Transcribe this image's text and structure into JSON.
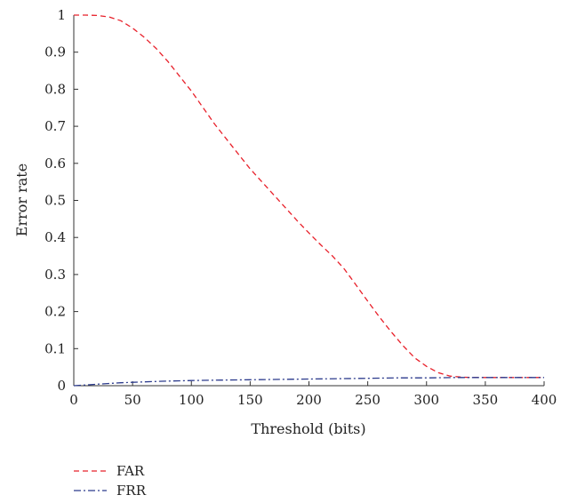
{
  "chart_data": {
    "type": "line",
    "title": "",
    "xlabel": "Threshold (bits)",
    "ylabel": "Error rate",
    "xlim": [
      0,
      400
    ],
    "ylim": [
      0,
      1
    ],
    "x_ticks": [
      0,
      50,
      100,
      150,
      200,
      250,
      300,
      350,
      400
    ],
    "y_ticks": [
      0,
      0.1,
      0.2,
      0.3,
      0.4,
      0.5,
      0.6,
      0.7,
      0.8,
      0.9,
      1
    ],
    "grid": false,
    "legend_position": "bottom-left",
    "series": [
      {
        "name": "FAR",
        "color": "#e8202a",
        "dash": "dashed",
        "x": [
          0,
          10,
          20,
          30,
          40,
          50,
          60,
          70,
          80,
          90,
          100,
          110,
          120,
          130,
          140,
          150,
          160,
          170,
          180,
          190,
          200,
          210,
          220,
          230,
          240,
          250,
          260,
          270,
          280,
          290,
          300,
          310,
          320,
          330,
          340,
          350,
          360,
          370,
          380,
          390,
          400
        ],
        "y": [
          1.0,
          1.0,
          0.999,
          0.995,
          0.985,
          0.965,
          0.94,
          0.91,
          0.875,
          0.835,
          0.795,
          0.75,
          0.705,
          0.665,
          0.625,
          0.585,
          0.55,
          0.515,
          0.48,
          0.445,
          0.412,
          0.38,
          0.35,
          0.315,
          0.272,
          0.228,
          0.185,
          0.145,
          0.108,
          0.075,
          0.052,
          0.035,
          0.026,
          0.023,
          0.022,
          0.022,
          0.022,
          0.022,
          0.022,
          0.022,
          0.022
        ]
      },
      {
        "name": "FRR",
        "color": "#2b3a8c",
        "dash": "dashdot",
        "x": [
          0,
          10,
          20,
          30,
          40,
          50,
          75,
          100,
          125,
          150,
          175,
          200,
          225,
          250,
          275,
          300,
          325,
          350,
          375,
          400
        ],
        "y": [
          0.0,
          0.002,
          0.004,
          0.006,
          0.008,
          0.009,
          0.012,
          0.014,
          0.015,
          0.016,
          0.017,
          0.018,
          0.019,
          0.02,
          0.021,
          0.021,
          0.022,
          0.022,
          0.022,
          0.022
        ]
      }
    ]
  }
}
